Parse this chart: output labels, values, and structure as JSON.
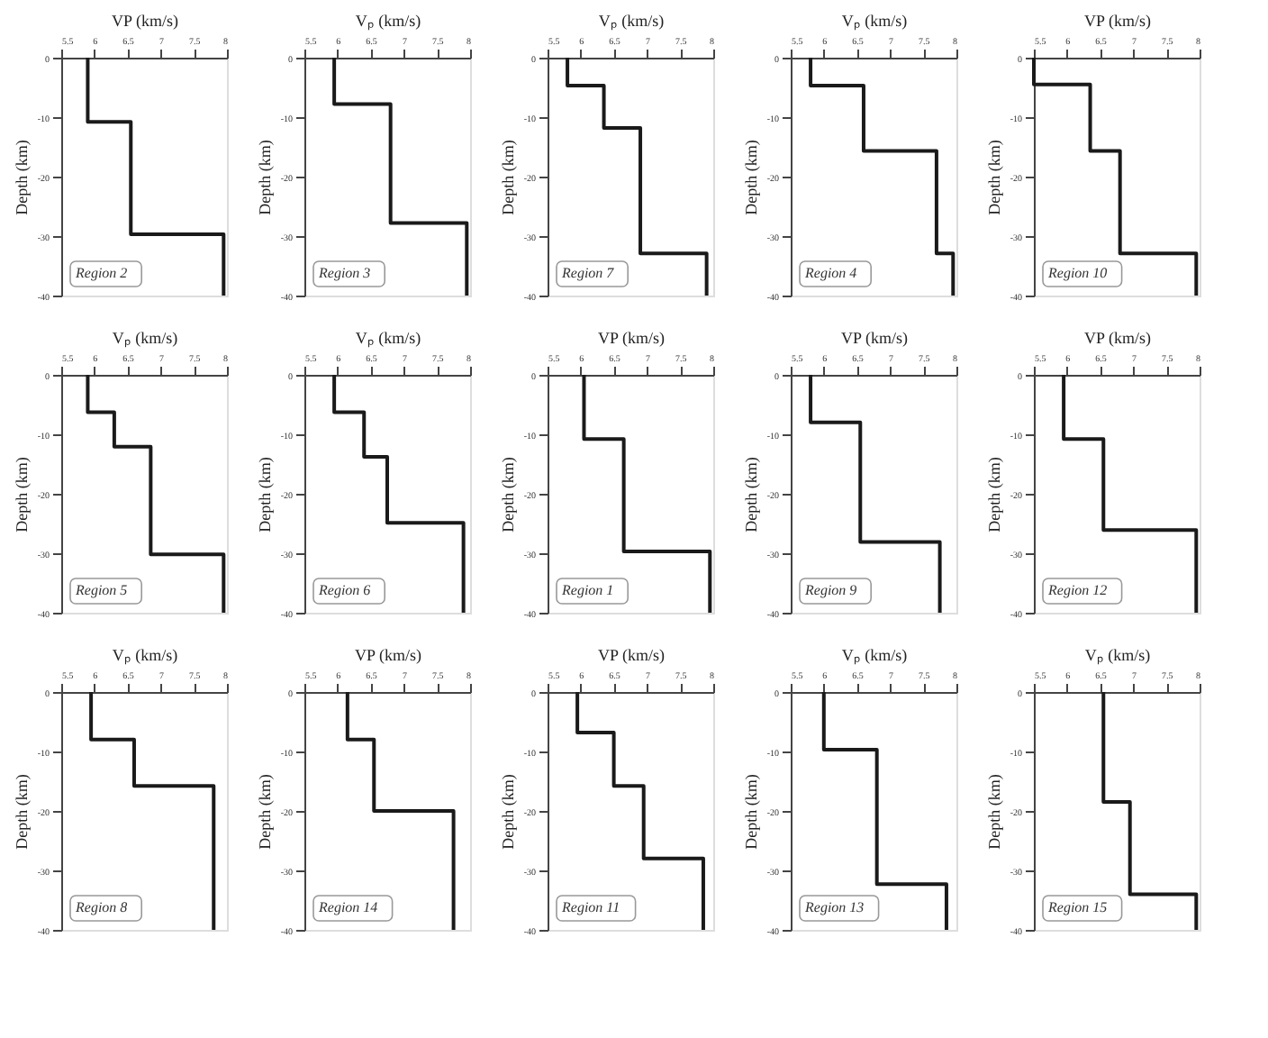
{
  "chart_data": [
    {
      "type": "line",
      "xlabel": "VP (km/s)",
      "ylabel": "Depth (km)",
      "annotations": [
        "Region 2"
      ],
      "xlim": [
        5.5,
        8
      ],
      "ylim": [
        -40,
        0
      ],
      "xticks": [
        5.5,
        6,
        6.5,
        7,
        7.5,
        8
      ],
      "yticks": [
        0,
        -10,
        -20,
        -30,
        -40
      ],
      "grid": false,
      "marker": "none",
      "line_style": "solid",
      "series": [
        {
          "color": "#1a1a1a",
          "x": [
            5.9,
            5.9,
            6.55,
            6.55,
            7.95,
            7.95
          ],
          "values": [
            0,
            -10.8,
            -10.8,
            -29.7,
            -29.7,
            -40
          ]
        }
      ]
    },
    {
      "type": "line",
      "xlabel": "Vₚ (km/s)",
      "ylabel": "Depth (km)",
      "annotations": [
        "Region 3"
      ],
      "xlim": [
        5.5,
        8
      ],
      "ylim": [
        -40,
        0
      ],
      "xticks": [
        5.5,
        6,
        6.5,
        7,
        7.5,
        8
      ],
      "yticks": [
        0,
        -10,
        -20,
        -30,
        -40
      ],
      "grid": false,
      "marker": "none",
      "line_style": "solid",
      "series": [
        {
          "color": "#1a1a1a",
          "x": [
            5.95,
            5.95,
            6.8,
            6.8,
            7.95,
            7.95
          ],
          "values": [
            0,
            -7.8,
            -7.8,
            -27.8,
            -27.8,
            -40
          ]
        }
      ]
    },
    {
      "type": "line",
      "xlabel": "Vₚ (km/s)",
      "ylabel": "Depth (km)",
      "annotations": [
        "Region 7"
      ],
      "xlim": [
        5.5,
        8
      ],
      "ylim": [
        -40,
        0
      ],
      "xticks": [
        5.5,
        6,
        6.5,
        7,
        7.5,
        8
      ],
      "yticks": [
        0,
        -10,
        -20,
        -30,
        -40
      ],
      "grid": false,
      "marker": "none",
      "line_style": "solid",
      "series": [
        {
          "color": "#1a1a1a",
          "x": [
            5.8,
            5.8,
            6.35,
            6.35,
            6.9,
            6.9,
            7.9,
            7.9
          ],
          "values": [
            0,
            -4.7,
            -4.7,
            -11.8,
            -11.8,
            -32.9,
            -32.9,
            -40
          ]
        }
      ]
    },
    {
      "type": "line",
      "xlabel": "Vₚ (km/s)",
      "ylabel": "Depth (km)",
      "annotations": [
        "Region 4"
      ],
      "xlim": [
        5.5,
        8
      ],
      "ylim": [
        -40,
        0
      ],
      "xticks": [
        5.5,
        6,
        6.5,
        7,
        7.5,
        8
      ],
      "yticks": [
        0,
        -10,
        -20,
        -30,
        -40
      ],
      "grid": false,
      "marker": "none",
      "line_style": "solid",
      "series": [
        {
          "color": "#1a1a1a",
          "x": [
            5.8,
            5.8,
            6.6,
            6.6,
            7.7,
            7.7,
            7.95,
            7.95
          ],
          "values": [
            0,
            -4.7,
            -4.7,
            -15.7,
            -15.7,
            -32.9,
            -32.9,
            -40
          ]
        }
      ]
    },
    {
      "type": "line",
      "xlabel": "VP (km/s)",
      "ylabel": "Depth (km)",
      "annotations": [
        "Region 10"
      ],
      "xlim": [
        5.5,
        8
      ],
      "ylim": [
        -40,
        0
      ],
      "xticks": [
        5.5,
        6,
        6.5,
        7,
        7.5,
        8
      ],
      "yticks": [
        0,
        -10,
        -20,
        -30,
        -40
      ],
      "grid": false,
      "marker": "none",
      "line_style": "solid",
      "series": [
        {
          "color": "#1a1a1a",
          "x": [
            5.5,
            5.5,
            6.35,
            6.35,
            6.8,
            6.8,
            7.95,
            7.95
          ],
          "values": [
            0,
            -4.5,
            -4.5,
            -15.7,
            -15.7,
            -32.9,
            -32.9,
            -40
          ]
        }
      ]
    },
    {
      "type": "line",
      "xlabel": "Vₚ (km/s)",
      "ylabel": "Depth (km)",
      "annotations": [
        "Region 5"
      ],
      "xlim": [
        5.5,
        8
      ],
      "ylim": [
        -40,
        0
      ],
      "xticks": [
        5.5,
        6,
        6.5,
        7,
        7.5,
        8
      ],
      "yticks": [
        0,
        -10,
        -20,
        -30,
        -40
      ],
      "grid": false,
      "marker": "none",
      "line_style": "solid",
      "series": [
        {
          "color": "#1a1a1a",
          "x": [
            5.9,
            5.9,
            6.3,
            6.3,
            6.85,
            6.85,
            7.95,
            7.95
          ],
          "values": [
            0,
            -6.3,
            -6.3,
            -12.1,
            -12.1,
            -30.2,
            -30.2,
            -40
          ]
        }
      ]
    },
    {
      "type": "line",
      "xlabel": "Vₚ (km/s)",
      "ylabel": "Depth (km)",
      "annotations": [
        "Region 6"
      ],
      "xlim": [
        5.5,
        8
      ],
      "ylim": [
        -40,
        0
      ],
      "xticks": [
        5.5,
        6,
        6.5,
        7,
        7.5,
        8
      ],
      "yticks": [
        0,
        -10,
        -20,
        -30,
        -40
      ],
      "grid": false,
      "marker": "none",
      "line_style": "solid",
      "series": [
        {
          "color": "#1a1a1a",
          "x": [
            5.95,
            5.95,
            6.4,
            6.4,
            6.75,
            6.75,
            7.9,
            7.9
          ],
          "values": [
            0,
            -6.3,
            -6.3,
            -13.8,
            -13.8,
            -24.9,
            -24.9,
            -40
          ]
        }
      ]
    },
    {
      "type": "line",
      "xlabel": "VP (km/s)",
      "ylabel": "Depth (km)",
      "annotations": [
        "Region 1"
      ],
      "xlim": [
        5.5,
        8
      ],
      "ylim": [
        -40,
        0
      ],
      "xticks": [
        5.5,
        6,
        6.5,
        7,
        7.5,
        8
      ],
      "yticks": [
        0,
        -10,
        -20,
        -30,
        -40
      ],
      "grid": false,
      "marker": "none",
      "line_style": "solid",
      "series": [
        {
          "color": "#1a1a1a",
          "x": [
            6.05,
            6.05,
            6.65,
            6.65,
            7.95,
            7.95
          ],
          "values": [
            0,
            -10.8,
            -10.8,
            -29.7,
            -29.7,
            -40
          ]
        }
      ]
    },
    {
      "type": "line",
      "xlabel": "VP (km/s)",
      "ylabel": "Depth (km)",
      "annotations": [
        "Region 9"
      ],
      "xlim": [
        5.5,
        8
      ],
      "ylim": [
        -40,
        0
      ],
      "xticks": [
        5.5,
        6,
        6.5,
        7,
        7.5,
        8
      ],
      "yticks": [
        0,
        -10,
        -20,
        -30,
        -40
      ],
      "grid": false,
      "marker": "none",
      "line_style": "solid",
      "series": [
        {
          "color": "#1a1a1a",
          "x": [
            5.8,
            5.8,
            6.55,
            6.55,
            7.75,
            7.75
          ],
          "values": [
            0,
            -8,
            -8,
            -28.1,
            -28.1,
            -40
          ]
        }
      ]
    },
    {
      "type": "line",
      "xlabel": "VP (km/s)",
      "ylabel": "Depth (km)",
      "annotations": [
        "Region 12"
      ],
      "xlim": [
        5.5,
        8
      ],
      "ylim": [
        -40,
        0
      ],
      "xticks": [
        5.5,
        6,
        6.5,
        7,
        7.5,
        8
      ],
      "yticks": [
        0,
        -10,
        -20,
        -30,
        -40
      ],
      "grid": false,
      "marker": "none",
      "line_style": "solid",
      "series": [
        {
          "color": "#1a1a1a",
          "x": [
            5.95,
            5.95,
            6.55,
            6.55,
            7.95,
            7.95
          ],
          "values": [
            0,
            -10.8,
            -10.8,
            -26.1,
            -26.1,
            -40
          ]
        }
      ]
    },
    {
      "type": "line",
      "xlabel": "Vₚ (km/s)",
      "ylabel": "Depth (km)",
      "annotations": [
        "Region 8"
      ],
      "xlim": [
        5.5,
        8
      ],
      "ylim": [
        -40,
        0
      ],
      "xticks": [
        5.5,
        6,
        6.5,
        7,
        7.5,
        8
      ],
      "yticks": [
        0,
        -10,
        -20,
        -30,
        -40
      ],
      "grid": false,
      "marker": "none",
      "line_style": "solid",
      "series": [
        {
          "color": "#1a1a1a",
          "x": [
            5.95,
            5.95,
            6.6,
            6.6,
            7.8,
            7.8
          ],
          "values": [
            0,
            -8,
            -8,
            -15.8,
            -15.8,
            -40
          ]
        }
      ]
    },
    {
      "type": "line",
      "xlabel": "VP (km/s)",
      "ylabel": "Depth (km)",
      "annotations": [
        "Region 14"
      ],
      "xlim": [
        5.5,
        8
      ],
      "ylim": [
        -40,
        0
      ],
      "xticks": [
        5.5,
        6,
        6.5,
        7,
        7.5,
        8
      ],
      "yticks": [
        0,
        -10,
        -20,
        -30,
        -40
      ],
      "grid": false,
      "marker": "none",
      "line_style": "solid",
      "series": [
        {
          "color": "#1a1a1a",
          "x": [
            6.15,
            6.15,
            6.55,
            6.55,
            7.75,
            7.75
          ],
          "values": [
            0,
            -8,
            -8,
            -20,
            -20,
            -40
          ]
        }
      ]
    },
    {
      "type": "line",
      "xlabel": "VP (km/s)",
      "ylabel": "Depth (km)",
      "annotations": [
        "Region 11"
      ],
      "xlim": [
        5.5,
        8
      ],
      "ylim": [
        -40,
        0
      ],
      "xticks": [
        5.5,
        6,
        6.5,
        7,
        7.5,
        8
      ],
      "yticks": [
        0,
        -10,
        -20,
        -30,
        -40
      ],
      "grid": false,
      "marker": "none",
      "line_style": "solid",
      "series": [
        {
          "color": "#1a1a1a",
          "x": [
            5.95,
            5.95,
            6.5,
            6.5,
            6.95,
            6.95,
            7.85,
            7.85
          ],
          "values": [
            0,
            -6.8,
            -6.8,
            -15.8,
            -15.8,
            -28,
            -28,
            -40
          ]
        }
      ]
    },
    {
      "type": "line",
      "xlabel": "Vₚ (km/s)",
      "ylabel": "Depth (km)",
      "annotations": [
        "Region 13"
      ],
      "xlim": [
        5.5,
        8
      ],
      "ylim": [
        -40,
        0
      ],
      "xticks": [
        5.5,
        6,
        6.5,
        7,
        7.5,
        8
      ],
      "yticks": [
        0,
        -10,
        -20,
        -30,
        -40
      ],
      "grid": false,
      "marker": "none",
      "line_style": "solid",
      "series": [
        {
          "color": "#1a1a1a",
          "x": [
            6,
            6,
            6.8,
            6.8,
            7.85,
            7.85
          ],
          "values": [
            0,
            -9.7,
            -9.7,
            -32.3,
            -32.3,
            -40
          ]
        }
      ]
    },
    {
      "type": "line",
      "xlabel": "Vₚ (km/s)",
      "ylabel": "Depth (km)",
      "annotations": [
        "Region 15"
      ],
      "xlim": [
        5.5,
        8
      ],
      "ylim": [
        -40,
        0
      ],
      "xticks": [
        5.5,
        6,
        6.5,
        7,
        7.5,
        8
      ],
      "yticks": [
        0,
        -10,
        -20,
        -30,
        -40
      ],
      "grid": false,
      "marker": "none",
      "line_style": "solid",
      "series": [
        {
          "color": "#1a1a1a",
          "x": [
            6.55,
            6.55,
            6.95,
            6.95,
            7.95,
            7.95
          ],
          "values": [
            0,
            -18.5,
            -18.5,
            -34,
            -34,
            -40
          ]
        }
      ]
    }
  ]
}
